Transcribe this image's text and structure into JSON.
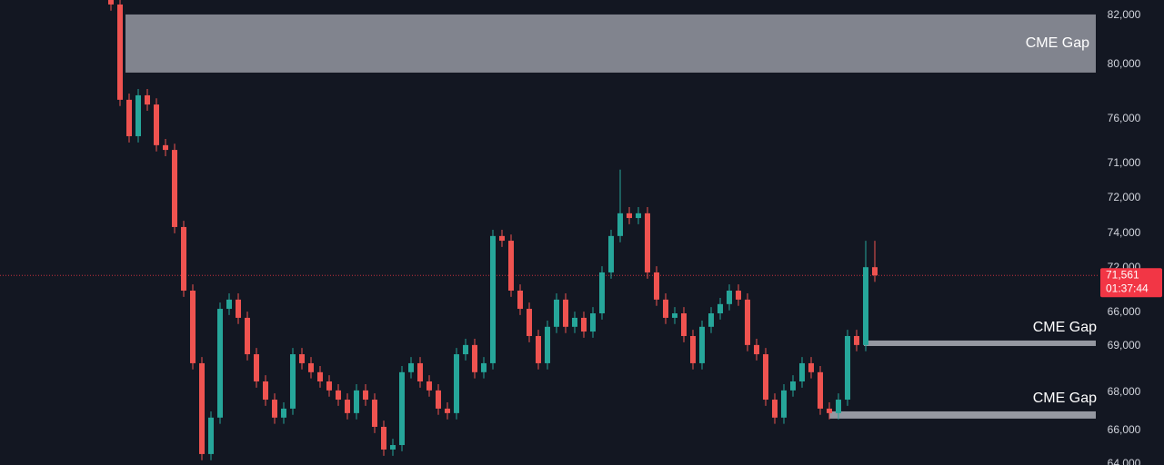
{
  "chart_data": {
    "type": "candlestick",
    "ylim": [
      63960,
      82600
    ],
    "up_color": "#26a69a",
    "down_color": "#ef5350",
    "candles": [
      [
        82800,
        83050,
        82170,
        82420
      ],
      [
        82420,
        82670,
        78350,
        78600
      ],
      [
        78600,
        78850,
        76890,
        77140
      ],
      [
        77140,
        79030,
        76890,
        78780
      ],
      [
        78780,
        79030,
        78160,
        78410
      ],
      [
        78410,
        78660,
        76530,
        76780
      ],
      [
        76780,
        77030,
        76340,
        76590
      ],
      [
        76590,
        76840,
        73250,
        73500
      ],
      [
        73500,
        73750,
        70700,
        70950
      ],
      [
        70950,
        71200,
        67790,
        68040
      ],
      [
        68040,
        68290,
        64150,
        64400
      ],
      [
        64400,
        66110,
        64150,
        65860
      ],
      [
        65860,
        70470,
        65610,
        70220
      ],
      [
        70220,
        70840,
        69970,
        70590
      ],
      [
        70590,
        70840,
        69610,
        69860
      ],
      [
        69860,
        70110,
        68150,
        68400
      ],
      [
        68400,
        68650,
        67060,
        67310
      ],
      [
        67310,
        67560,
        66330,
        66580
      ],
      [
        66580,
        66830,
        65610,
        65860
      ],
      [
        65860,
        66470,
        65610,
        66220
      ],
      [
        66220,
        68650,
        65970,
        68400
      ],
      [
        68400,
        68650,
        67790,
        68040
      ],
      [
        68040,
        68290,
        67430,
        67680
      ],
      [
        67680,
        67930,
        67060,
        67310
      ],
      [
        67310,
        67560,
        66700,
        66950
      ],
      [
        66950,
        67200,
        66330,
        66580
      ],
      [
        66580,
        66830,
        65790,
        66040
      ],
      [
        66040,
        67200,
        65790,
        66950
      ],
      [
        66950,
        67200,
        66330,
        66580
      ],
      [
        66580,
        66830,
        65240,
        65490
      ],
      [
        65490,
        65740,
        64330,
        64580
      ],
      [
        64580,
        65010,
        64330,
        64760
      ],
      [
        64760,
        67930,
        64510,
        67680
      ],
      [
        67680,
        68290,
        67430,
        68040
      ],
      [
        68040,
        68290,
        67060,
        67310
      ],
      [
        67310,
        67560,
        66700,
        66950
      ],
      [
        66950,
        67200,
        65970,
        66220
      ],
      [
        66220,
        66470,
        65790,
        66040
      ],
      [
        66040,
        68650,
        65790,
        68400
      ],
      [
        68400,
        69020,
        68150,
        68770
      ],
      [
        68770,
        69020,
        67430,
        67680
      ],
      [
        67680,
        68290,
        67430,
        68040
      ],
      [
        68040,
        73390,
        67790,
        73140
      ],
      [
        73140,
        73390,
        72700,
        72950
      ],
      [
        72950,
        73200,
        70700,
        70950
      ],
      [
        70950,
        71200,
        69970,
        70220
      ],
      [
        70220,
        70470,
        68880,
        69130
      ],
      [
        69130,
        69380,
        67790,
        68040
      ],
      [
        68040,
        69750,
        67790,
        69500
      ],
      [
        69500,
        70840,
        69250,
        70590
      ],
      [
        70590,
        70840,
        69250,
        69500
      ],
      [
        69500,
        70110,
        69250,
        69860
      ],
      [
        69860,
        70110,
        69060,
        69310
      ],
      [
        69310,
        70290,
        69060,
        70040
      ],
      [
        70040,
        71930,
        69790,
        71680
      ],
      [
        71680,
        73390,
        71430,
        73140
      ],
      [
        73140,
        75800,
        72890,
        74050
      ],
      [
        74050,
        74300,
        73610,
        73860
      ],
      [
        73860,
        74300,
        73610,
        74050
      ],
      [
        74050,
        74300,
        71430,
        71680
      ],
      [
        71680,
        71930,
        70340,
        70590
      ],
      [
        70590,
        70840,
        69610,
        69860
      ],
      [
        69860,
        70290,
        69610,
        70040
      ],
      [
        70040,
        70290,
        68880,
        69130
      ],
      [
        69130,
        69380,
        67790,
        68040
      ],
      [
        68040,
        69750,
        67790,
        69500
      ],
      [
        69500,
        70290,
        69250,
        70040
      ],
      [
        70040,
        70660,
        69790,
        70410
      ],
      [
        70410,
        71200,
        70160,
        70950
      ],
      [
        70950,
        71200,
        70340,
        70590
      ],
      [
        70590,
        70840,
        68520,
        68770
      ],
      [
        68770,
        69020,
        68150,
        68400
      ],
      [
        68400,
        68650,
        66330,
        66580
      ],
      [
        66580,
        66830,
        65610,
        65860
      ],
      [
        65860,
        67200,
        65610,
        66950
      ],
      [
        66950,
        67560,
        66700,
        67310
      ],
      [
        67310,
        68290,
        67060,
        68040
      ],
      [
        68040,
        68290,
        67430,
        67680
      ],
      [
        67680,
        67930,
        65970,
        66220
      ],
      [
        66220,
        66470,
        65790,
        66040
      ],
      [
        66040,
        66830,
        65790,
        66580
      ],
      [
        66580,
        69380,
        66330,
        69130
      ],
      [
        69130,
        69380,
        68520,
        68770
      ],
      [
        68770,
        72950,
        68520,
        71890
      ],
      [
        71890,
        72950,
        71300,
        71561
      ]
    ],
    "price_axis_labels": [
      "82,000",
      "80,000",
      "76,000",
      "71,000",
      "72,000",
      "74,000",
      "72,000",
      "66,000",
      "69,000",
      "68,000",
      "66,000",
      "64,000"
    ],
    "last_price": {
      "value": 71561,
      "label": "71,561"
    },
    "countdown": "01:37:44",
    "last_price_color": "#f23645",
    "zones": [
      {
        "label": "CME Gap",
        "top": 82020,
        "bottom": 79690,
        "color": "#9598a1"
      },
      {
        "label": "CME Gap",
        "top": 68950,
        "bottom": 68730,
        "color": "#9598a1"
      },
      {
        "label": "CME Gap",
        "top": 66110,
        "bottom": 65820,
        "color": "#9598a1"
      }
    ]
  }
}
